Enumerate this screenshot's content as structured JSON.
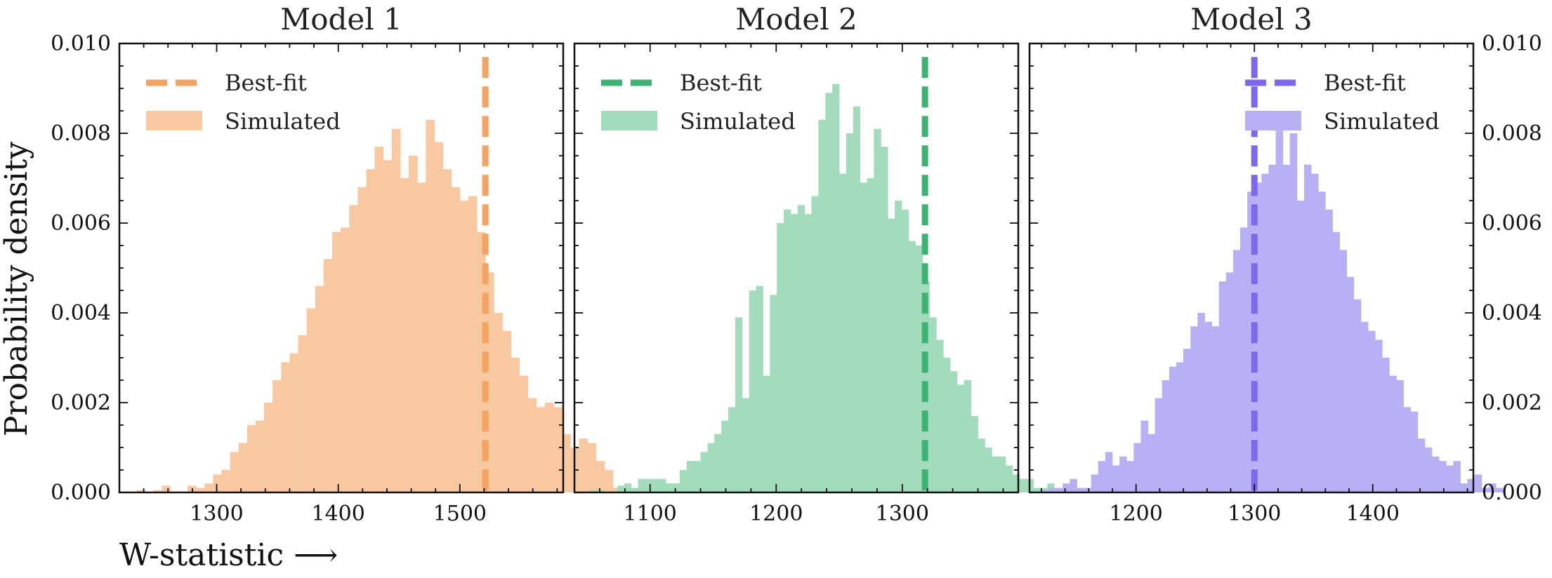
{
  "figure": {
    "ylabel": "Probability density",
    "xlabel": "W-statistic ⟶"
  },
  "chart_data": [
    {
      "type": "histogram",
      "title": "Model 1",
      "color": "#f4a460",
      "fill_color": "#f8c9a0",
      "xlim": [
        1220,
        1585
      ],
      "ylim": [
        0,
        0.01
      ],
      "xticks": [
        1300,
        1400,
        1500
      ],
      "yticks": [
        0,
        0.002,
        0.004,
        0.006,
        0.008,
        0.01
      ],
      "ytick_labels": [
        "0.000",
        "0.002",
        "0.004",
        "0.006",
        "0.008",
        "0.010"
      ],
      "yticks_labeled_side": "left",
      "best_fit": 1521,
      "bin_start": 1234,
      "bin_width": 7,
      "densities": [
        5e-05,
        0.0,
        5e-05,
        0.00015,
        0.0,
        0.0,
        0.00015,
        0.0001,
        0.0002,
        0.0004,
        0.0005,
        0.0009,
        0.0011,
        0.0015,
        0.0016,
        0.002,
        0.0025,
        0.0029,
        0.0031,
        0.0035,
        0.0041,
        0.0046,
        0.0052,
        0.0058,
        0.0059,
        0.0064,
        0.0068,
        0.0072,
        0.0077,
        0.0074,
        0.0081,
        0.007,
        0.0075,
        0.0069,
        0.0083,
        0.0078,
        0.0072,
        0.0068,
        0.0065,
        0.0066,
        0.0058,
        0.0049,
        0.004,
        0.0036,
        0.003,
        0.0026,
        0.0021,
        0.0019,
        0.002,
        0.0019,
        0.0013,
        0.001,
        0.0012,
        0.0011,
        0.0007,
        0.0005,
        0.0001,
        0.00015,
        0.0001,
        5e-05,
        5e-05,
        5e-05,
        5e-05
      ],
      "legend": [
        "Best-fit",
        "Simulated"
      ],
      "legend_location": "upper left"
    },
    {
      "type": "histogram",
      "title": "Model 2",
      "color": "#3cb371",
      "fill_color": "#a3dcbd",
      "xlim": [
        1040,
        1392
      ],
      "ylim": [
        0,
        0.01
      ],
      "xticks": [
        1100,
        1200,
        1300
      ],
      "yticks": [
        0,
        0.002,
        0.004,
        0.006,
        0.008,
        0.01
      ],
      "yticks_labeled_side": "none",
      "best_fit": 1318,
      "bin_start": 1052,
      "bin_width": 5.5,
      "densities": [
        5e-05,
        5e-05,
        0.0,
        0.0,
        0.00015,
        0.0002,
        0.0001,
        0.0003,
        0.0003,
        0.0003,
        0.0003,
        0.0002,
        0.0002,
        0.0005,
        0.0007,
        0.0007,
        0.0009,
        0.0011,
        0.0013,
        0.0016,
        0.0019,
        0.0039,
        0.0021,
        0.0045,
        0.0046,
        0.0026,
        0.0044,
        0.006,
        0.0063,
        0.0062,
        0.0064,
        0.0062,
        0.0066,
        0.0083,
        0.0089,
        0.0091,
        0.0071,
        0.008,
        0.0086,
        0.0069,
        0.007,
        0.0081,
        0.0077,
        0.0061,
        0.0065,
        0.0063,
        0.0056,
        0.0055,
        0.0047,
        0.0039,
        0.0034,
        0.003,
        0.0027,
        0.0024,
        0.0025,
        0.0017,
        0.0012,
        0.001,
        0.0008,
        0.0008,
        0.0006,
        0.0004,
        0.0003,
        0.0003,
        0.0001,
        0.0001,
        0.0002,
        0.0001
      ],
      "legend": [
        "Best-fit",
        "Simulated"
      ],
      "legend_location": "upper left"
    },
    {
      "type": "histogram",
      "title": "Model 3",
      "color": "#7b68ee",
      "fill_color": "#b7b0f5",
      "xlim": [
        1110,
        1485
      ],
      "ylim": [
        0,
        0.01
      ],
      "xticks": [
        1200,
        1300,
        1400
      ],
      "yticks": [
        0,
        0.002,
        0.004,
        0.006,
        0.008,
        0.01
      ],
      "ytick_labels": [
        "0.000",
        "0.002",
        "0.004",
        "0.006",
        "0.008",
        "0.010"
      ],
      "yticks_labeled_side": "right",
      "best_fit": 1300,
      "bin_start": 1120,
      "bin_width": 6,
      "densities": [
        5e-05,
        0.0001,
        0.0001,
        0.0002,
        0.0003,
        0.0001,
        0.0001,
        0.0004,
        0.0007,
        0.0009,
        0.0006,
        0.0008,
        0.0007,
        0.0011,
        0.0016,
        0.0013,
        0.0021,
        0.0025,
        0.0028,
        0.0029,
        0.0032,
        0.0037,
        0.004,
        0.0038,
        0.0037,
        0.0047,
        0.0049,
        0.0054,
        0.0059,
        0.0067,
        0.0069,
        0.0071,
        0.0073,
        0.0084,
        0.0073,
        0.008,
        0.0065,
        0.0073,
        0.0071,
        0.0067,
        0.0063,
        0.0058,
        0.0054,
        0.0048,
        0.0043,
        0.0038,
        0.0036,
        0.0034,
        0.003,
        0.0026,
        0.0025,
        0.0019,
        0.0018,
        0.0012,
        0.001,
        0.0008,
        0.0007,
        0.0006,
        0.0007,
        0.0002,
        0.0003,
        0.0004,
        0.0001,
        0.0002,
        0.0001
      ],
      "legend": [
        "Best-fit",
        "Simulated"
      ],
      "legend_location": "upper right"
    }
  ]
}
